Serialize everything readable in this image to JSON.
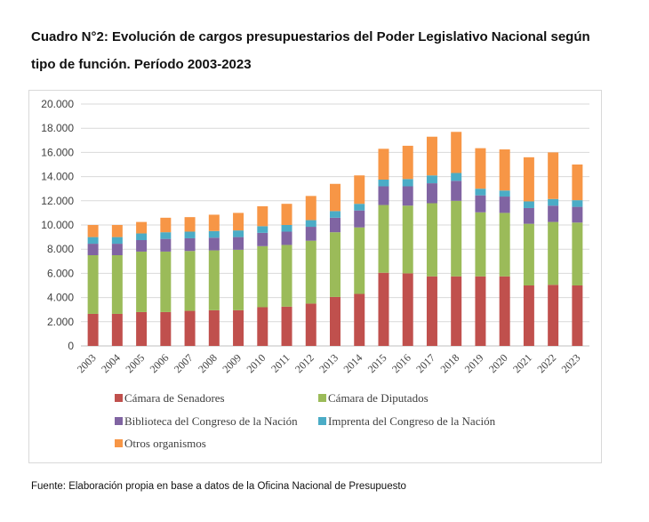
{
  "title": "Cuadro N°2: Evolución de cargos presupuestarios del Poder Legislativo Nacional según tipo de función. Período 2003-2023",
  "source": "Fuente: Elaboración propia en base a datos de la Oficina Nacional de Presupuesto",
  "chart_data": {
    "type": "bar",
    "stacked": true,
    "categories": [
      "2003",
      "2004",
      "2005",
      "2006",
      "2007",
      "2008",
      "2009",
      "2010",
      "2011",
      "2012",
      "2013",
      "2014",
      "2015",
      "2016",
      "2017",
      "2018",
      "2019",
      "2020",
      "2021",
      "2022",
      "2023"
    ],
    "ylim": [
      0,
      20000
    ],
    "yticks": [
      0,
      2000,
      4000,
      6000,
      8000,
      10000,
      12000,
      14000,
      16000,
      18000,
      20000
    ],
    "ytick_labels": [
      "0",
      "2.000",
      "4.000",
      "6.000",
      "8.000",
      "10.000",
      "12.000",
      "14.000",
      "16.000",
      "18.000",
      "20.000"
    ],
    "grid": true,
    "legend_position": "bottom",
    "series": [
      {
        "name": "Cámara de Senadores",
        "color": "#c0504d",
        "values": [
          2650,
          2650,
          2800,
          2800,
          2900,
          2950,
          2950,
          3200,
          3250,
          3500,
          4050,
          4300,
          6050,
          6000,
          5750,
          5750,
          5750,
          5750,
          5000,
          5050,
          5000
        ]
      },
      {
        "name": "Cámara de Diputados",
        "color": "#9bbb59",
        "values": [
          4850,
          4850,
          5000,
          5000,
          4950,
          4950,
          5000,
          5050,
          5100,
          5200,
          5350,
          5500,
          5600,
          5600,
          6050,
          6250,
          5300,
          5250,
          5100,
          5200,
          5200
        ]
      },
      {
        "name": "Biblioteca del Congreso de la Nación",
        "color": "#8064a2",
        "values": [
          950,
          950,
          950,
          1050,
          1050,
          1050,
          1050,
          1100,
          1100,
          1150,
          1200,
          1400,
          1550,
          1600,
          1650,
          1650,
          1400,
          1350,
          1300,
          1350,
          1300
        ]
      },
      {
        "name": "Imprenta del Congreso de la Nación",
        "color": "#4bacc6",
        "values": [
          550,
          550,
          550,
          550,
          550,
          550,
          550,
          550,
          550,
          550,
          550,
          550,
          550,
          600,
          650,
          650,
          550,
          500,
          550,
          550,
          550
        ]
      },
      {
        "name": "Otros organismos",
        "color": "#f79646",
        "values": [
          1000,
          1000,
          950,
          1200,
          1200,
          1350,
          1450,
          1650,
          1750,
          2000,
          2250,
          2350,
          2550,
          2750,
          3200,
          3400,
          3350,
          3400,
          3650,
          3850,
          2950
        ]
      }
    ]
  }
}
